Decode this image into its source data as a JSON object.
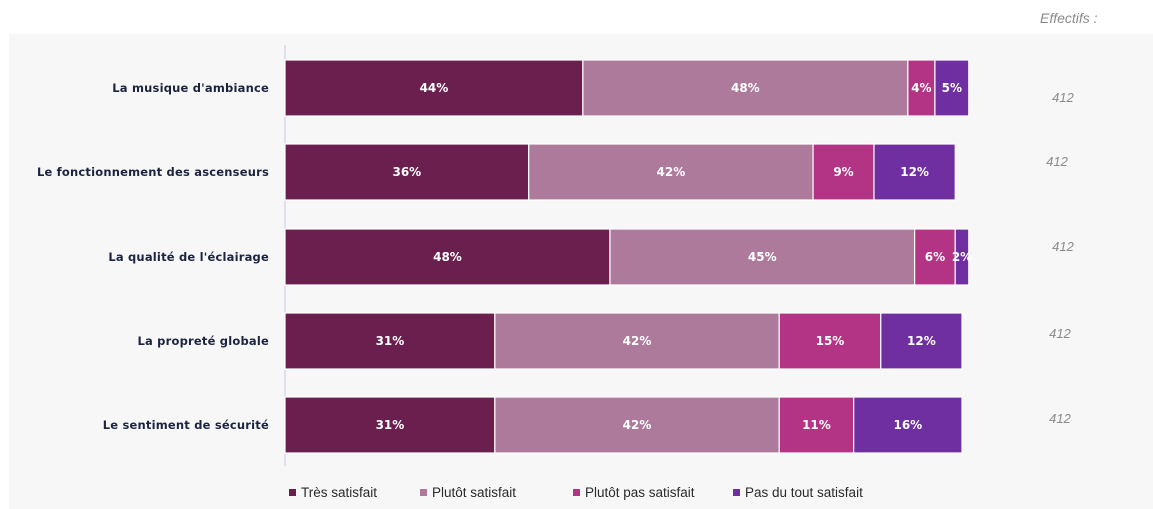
{
  "effectifs_title": "Effectifs :",
  "chart_data": {
    "type": "bar",
    "orientation": "horizontal",
    "stacked": true,
    "categories": [
      "La musique d'ambiance",
      "Le fonctionnement des ascenseurs",
      "La qualité de l'éclairage",
      "La propreté globale",
      "Le sentiment de sécurité"
    ],
    "series": [
      {
        "name": "Très satisfait",
        "color": "#6a1f4f",
        "values": [
          44,
          36,
          48,
          31,
          31
        ]
      },
      {
        "name": "Plutôt satisfait",
        "color": "#ad7a9c",
        "values": [
          48,
          42,
          45,
          42,
          42
        ]
      },
      {
        "name": "Plutôt pas satisfait",
        "color": "#b33385",
        "values": [
          4,
          9,
          6,
          15,
          11
        ]
      },
      {
        "name": "Pas du tout satisfait",
        "color": "#702fa1",
        "values": [
          5,
          12,
          2,
          12,
          16
        ]
      }
    ],
    "value_labels": [
      [
        "44%",
        "48%",
        "4%",
        "5%"
      ],
      [
        "36%",
        "42%",
        "9%",
        "12%"
      ],
      [
        "48%",
        "45%",
        "6%",
        "2%"
      ],
      [
        "31%",
        "42%",
        "15%",
        "12%"
      ],
      [
        "31%",
        "42%",
        "11%",
        "16%"
      ]
    ],
    "effectifs": [
      "412",
      "412",
      "412",
      "412",
      "412"
    ],
    "legend_position": "bottom",
    "grid": false
  }
}
